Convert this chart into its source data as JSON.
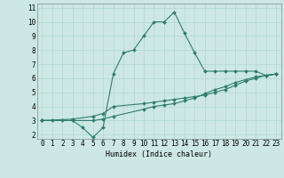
{
  "xlabel": "Humidex (Indice chaleur)",
  "xlim": [
    -0.5,
    23.5
  ],
  "ylim": [
    1.7,
    11.3
  ],
  "xticks": [
    0,
    1,
    2,
    3,
    4,
    5,
    6,
    7,
    8,
    9,
    10,
    11,
    12,
    13,
    14,
    15,
    16,
    17,
    18,
    19,
    20,
    21,
    22,
    23
  ],
  "yticks": [
    2,
    3,
    4,
    5,
    6,
    7,
    8,
    9,
    10,
    11
  ],
  "background_color": "#cde8e4",
  "grid_color": "#b0d8d4",
  "line_color": "#2e7d6e",
  "series1_x": [
    0,
    1,
    2,
    3,
    4,
    5,
    6,
    7,
    8,
    9,
    10,
    11,
    12,
    13,
    14,
    15,
    16,
    17,
    18,
    19,
    20,
    21,
    22,
    23
  ],
  "series1_y": [
    3.0,
    3.0,
    3.0,
    3.0,
    2.5,
    1.8,
    2.5,
    6.3,
    7.8,
    8.0,
    9.0,
    10.0,
    10.0,
    10.7,
    9.2,
    7.8,
    6.5,
    6.5,
    6.5,
    6.5,
    6.5,
    6.5,
    6.2,
    6.3
  ],
  "series2_x": [
    0,
    3,
    5,
    6,
    7,
    10,
    11,
    12,
    13,
    14,
    15,
    16,
    17,
    18,
    19,
    20,
    21,
    22,
    23
  ],
  "series2_y": [
    3.0,
    3.1,
    3.3,
    3.5,
    4.0,
    4.2,
    4.3,
    4.4,
    4.5,
    4.6,
    4.7,
    4.8,
    5.0,
    5.2,
    5.5,
    5.8,
    6.0,
    6.2,
    6.3
  ],
  "series3_x": [
    0,
    3,
    5,
    6,
    7,
    10,
    11,
    12,
    13,
    14,
    15,
    16,
    17,
    18,
    19,
    20,
    21,
    22,
    23
  ],
  "series3_y": [
    3.0,
    3.0,
    3.0,
    3.1,
    3.3,
    3.8,
    4.0,
    4.1,
    4.2,
    4.4,
    4.6,
    4.9,
    5.2,
    5.4,
    5.7,
    5.9,
    6.1,
    6.2,
    6.3
  ],
  "xlabel_fontsize": 6.0,
  "tick_fontsize": 5.5
}
